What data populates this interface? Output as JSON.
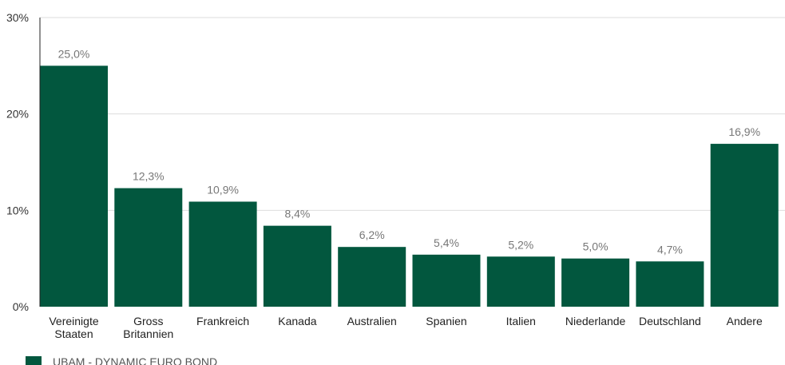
{
  "chart_data": {
    "type": "bar",
    "categories": [
      [
        "Vereinigte",
        "Staaten"
      ],
      [
        "Gross",
        "Britannien"
      ],
      [
        "Frankreich"
      ],
      [
        "Kanada"
      ],
      [
        "Australien"
      ],
      [
        "Spanien"
      ],
      [
        "Italien"
      ],
      [
        "Niederlande"
      ],
      [
        "Deutschland"
      ],
      [
        "Andere"
      ]
    ],
    "series": [
      {
        "name": "UBAM - DYNAMIC EURO BOND",
        "values": [
          25.0,
          12.3,
          10.9,
          8.4,
          6.2,
          5.4,
          5.2,
          5.0,
          4.7,
          16.9
        ],
        "labels": [
          "25,0%",
          "12,3%",
          "10,9%",
          "8,4%",
          "6,2%",
          "5,4%",
          "5,2%",
          "5,0%",
          "4,7%",
          "16,9%"
        ]
      }
    ],
    "ylim": [
      0,
      30
    ],
    "yticks": [
      0,
      10,
      20,
      30
    ],
    "ytick_labels": [
      "0%",
      "10%",
      "20%",
      "30%"
    ],
    "grid": true,
    "legend_position": "bottom-left",
    "colors": {
      "bar": "#02573e",
      "grid": "#dddddd",
      "axis": "#222222"
    }
  }
}
